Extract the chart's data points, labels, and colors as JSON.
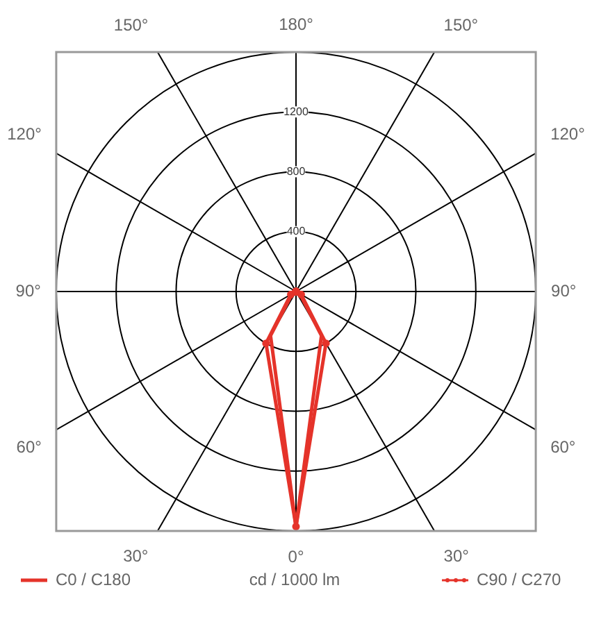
{
  "chart_data": {
    "type": "radar",
    "ylabel": "cd / 1000 lm",
    "categories": [
      "180°",
      "150°",
      "120°",
      "90°",
      "60°",
      "30°",
      "0°",
      "30°",
      "60°",
      "90°",
      "120°",
      "150°"
    ],
    "series": [
      {
        "name": "C0 / C180",
        "color": "#e5332a",
        "marker": "none",
        "values": [
          0,
          0,
          0,
          0,
          30,
          340,
          1570,
          340,
          30,
          0,
          0,
          0
        ]
      },
      {
        "name": "C90 / C270",
        "color": "#e5332a",
        "marker": "circle",
        "values": [
          0,
          0,
          0,
          0,
          40,
          400,
          1570,
          400,
          40,
          0,
          0,
          0
        ]
      }
    ],
    "ylim": [
      0,
      1600
    ],
    "yticks": [
      400,
      800,
      1200
    ],
    "grid": true,
    "legend": "bottom"
  }
}
